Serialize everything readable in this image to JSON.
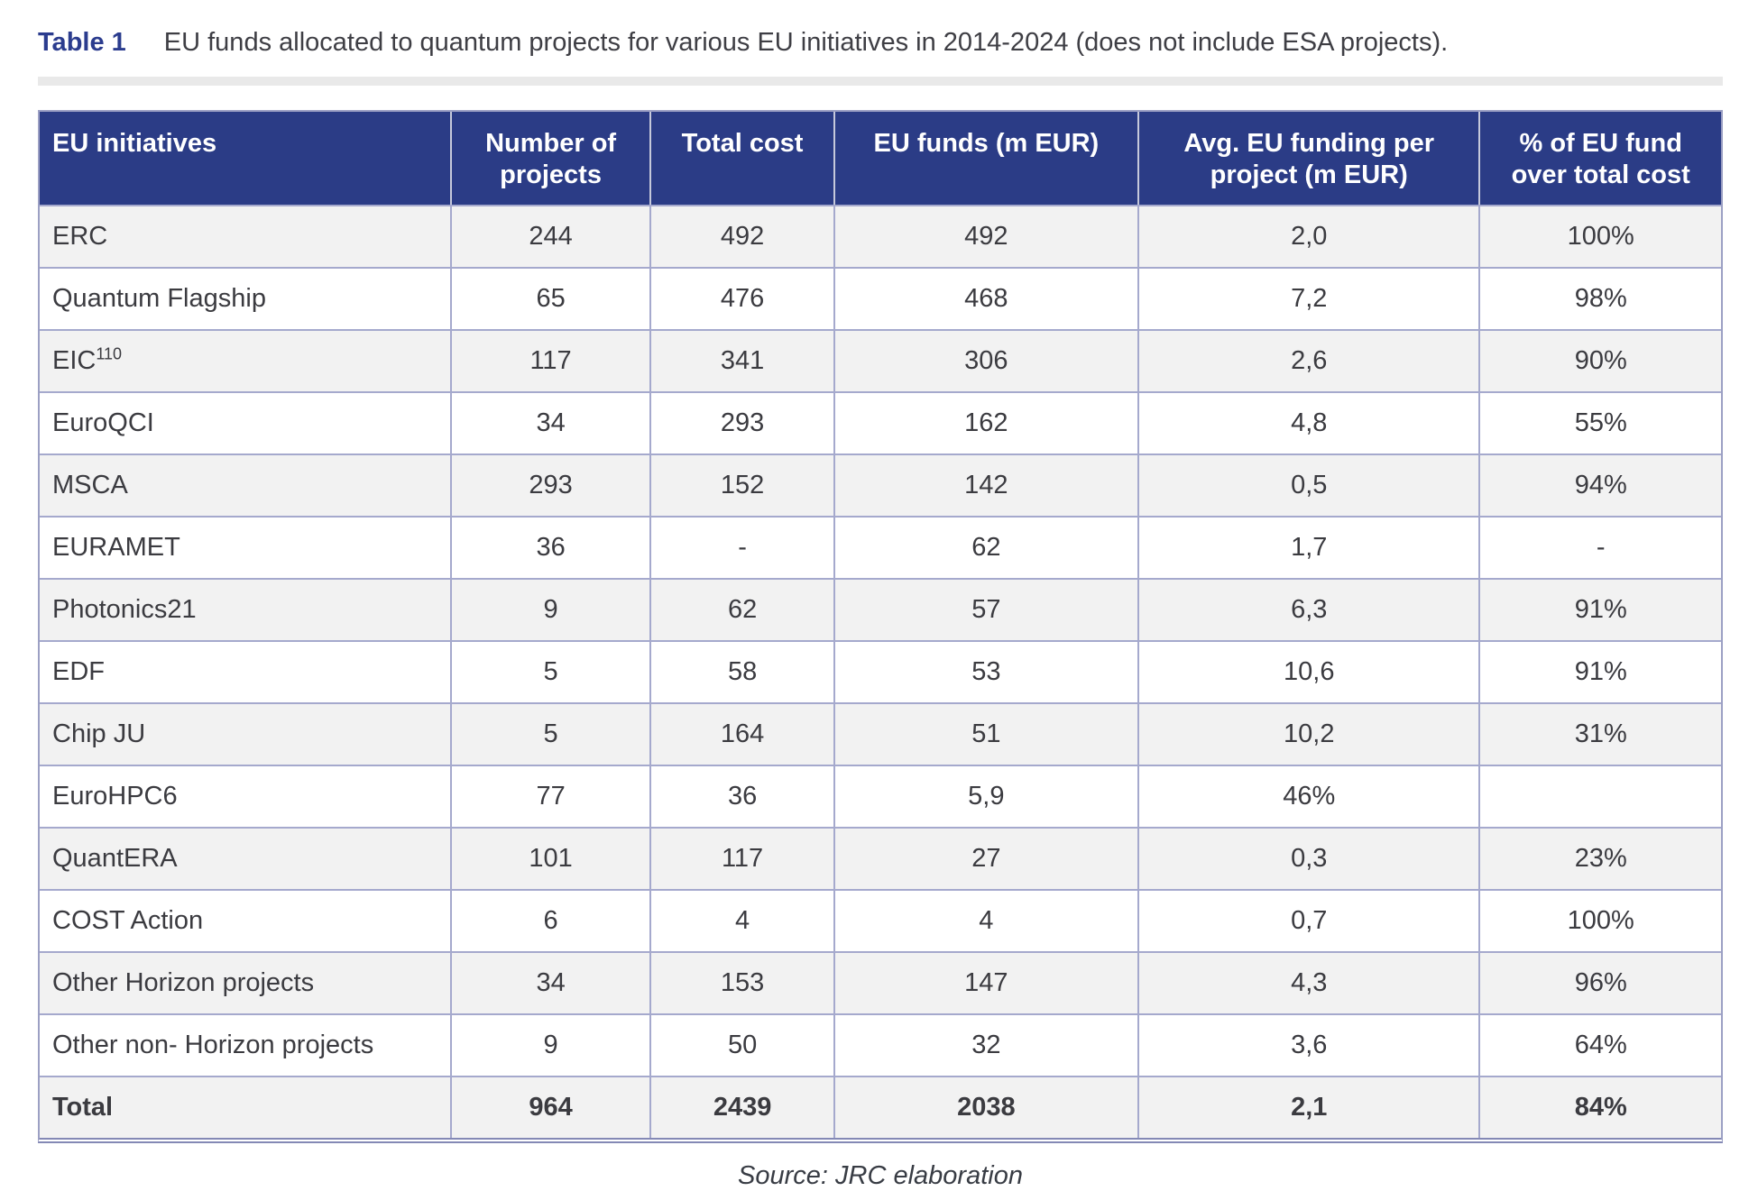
{
  "page": {
    "title_label": "Table 1",
    "title_caption": "EU funds allocated to quantum projects for various EU initiatives in 2014-2024 (does not include ESA projects).",
    "source": "Source: JRC elaboration"
  },
  "colors": {
    "title_blue": "#2b3c8e",
    "header_bg": "#2b3c86",
    "row_alt": "#f2f2f2",
    "border": "#a5a9cd",
    "outer_border": "#9ca0c4",
    "text": "#3b3b40",
    "rule": "#e9e9e9"
  },
  "table": {
    "columns": [
      {
        "label": "EU initiatives",
        "align": "left",
        "width": "24.5%"
      },
      {
        "label": "Number of projects",
        "align": "center",
        "width": "11.9%"
      },
      {
        "label": "Total cost",
        "align": "center",
        "width": "10.9%"
      },
      {
        "label": "EU funds (m EUR)",
        "align": "center",
        "width": "18.1%"
      },
      {
        "label": "Avg. EU funding per project (m EUR)",
        "align": "center",
        "width": "20.3%"
      },
      {
        "label": "% of EU fund over total cost",
        "align": "center",
        "width": "14.3%"
      }
    ],
    "rows": [
      {
        "initiative": "ERC",
        "superscript": "",
        "values": [
          "244",
          "492",
          "492",
          "2,0",
          "100%"
        ]
      },
      {
        "initiative": "Quantum Flagship",
        "superscript": "",
        "values": [
          "65",
          "476",
          "468",
          "7,2",
          "98%"
        ]
      },
      {
        "initiative": "EIC",
        "superscript": "110",
        "values": [
          "117",
          "341",
          "306",
          "2,6",
          "90%"
        ]
      },
      {
        "initiative": "EuroQCI",
        "superscript": "",
        "values": [
          "34",
          "293",
          "162",
          "4,8",
          "55%"
        ]
      },
      {
        "initiative": "MSCA",
        "superscript": "",
        "values": [
          "293",
          "152",
          "142",
          "0,5",
          "94%"
        ]
      },
      {
        "initiative": "EURAMET",
        "superscript": "",
        "values": [
          "36",
          "-",
          "62",
          "1,7",
          "-"
        ]
      },
      {
        "initiative": "Photonics21",
        "superscript": "",
        "values": [
          "9",
          "62",
          "57",
          "6,3",
          "91%"
        ]
      },
      {
        "initiative": "EDF",
        "superscript": "",
        "values": [
          "5",
          "58",
          "53",
          "10,6",
          "91%"
        ]
      },
      {
        "initiative": "Chip JU",
        "superscript": "",
        "values": [
          "5",
          "164",
          "51",
          "10,2",
          "31%"
        ]
      },
      {
        "initiative": "EuroHPC6",
        "superscript": "",
        "values": [
          "77",
          "36",
          "5,9",
          "46%",
          ""
        ]
      },
      {
        "initiative": "QuantERA",
        "superscript": "",
        "values": [
          "101",
          "117",
          "27",
          "0,3",
          "23%"
        ]
      },
      {
        "initiative": "COST Action",
        "superscript": "",
        "values": [
          "6",
          "4",
          "4",
          "0,7",
          "100%"
        ]
      },
      {
        "initiative": "Other Horizon projects",
        "superscript": "",
        "values": [
          "34",
          "153",
          "147",
          "4,3",
          "96%"
        ]
      },
      {
        "initiative": "Other non- Horizon projects",
        "superscript": "",
        "values": [
          "9",
          "50",
          "32",
          "3,6",
          "64%"
        ]
      }
    ],
    "total_row": {
      "initiative": "Total",
      "values": [
        "964",
        "2439",
        "2038",
        "2,1",
        "84%"
      ]
    }
  }
}
